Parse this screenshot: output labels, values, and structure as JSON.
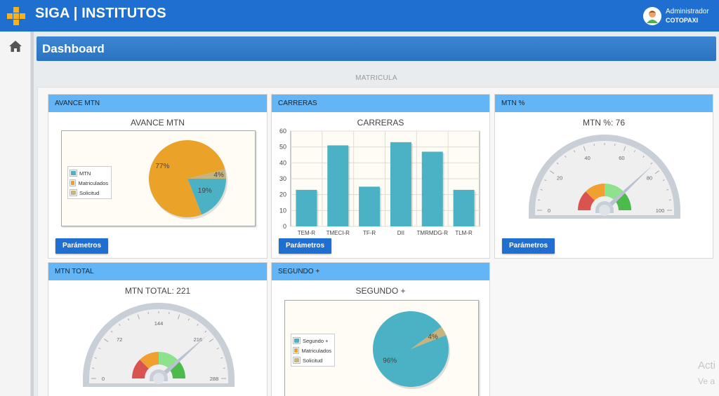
{
  "header": {
    "title": "SIGA | INSTITUTOS",
    "user_role": "Administrador",
    "user_institution": "COTOPAXI"
  },
  "page": {
    "title": "Dashboard",
    "section_label": "MATRICULA"
  },
  "colors": {
    "topbar": "#1f6fd0",
    "panel_head": "#64b5f6",
    "button": "#1f6fd0",
    "mtn": "#4bb2c5",
    "matriculados": "#eaa228",
    "solicitud": "#c5b47f"
  },
  "panels": {
    "avance_mtn": {
      "header": "AVANCE MTN",
      "title": "AVANCE MTN",
      "button": "Parámetros",
      "legend": [
        "MTN",
        "Matriculados",
        "Solicitud"
      ],
      "slice_labels": [
        "77%",
        "19%",
        "4%"
      ]
    },
    "carreras": {
      "header": "CARRERAS",
      "title": "CARRERAS",
      "button": "Parámetros"
    },
    "mtn_pct": {
      "header": "MTN %",
      "title": "MTN %: 76",
      "button": "Parámetros"
    },
    "mtn_total": {
      "header": "MTN TOTAL",
      "title": "MTN TOTAL: 221"
    },
    "segundo": {
      "header": "SEGUNDO +",
      "title": "SEGUNDO +",
      "legend": [
        "Segundo +",
        "Matriculados",
        "Solicitud"
      ],
      "slice_labels": [
        "96%",
        "4%"
      ]
    }
  },
  "chart_data": [
    {
      "type": "pie",
      "title": "AVANCE MTN",
      "labels": [
        "MTN",
        "Matriculados",
        "Solicitud"
      ],
      "values": [
        19,
        77,
        4
      ],
      "legend": "left"
    },
    {
      "type": "bar",
      "title": "CARRERAS",
      "categories": [
        "TEM-R",
        "TMECI-R",
        "TF-R",
        "DII",
        "TMRMDG-R",
        "TLM-R"
      ],
      "values": [
        23,
        51,
        25,
        53,
        47,
        23
      ],
      "ylim": [
        0,
        60
      ],
      "yticks": [
        0,
        10,
        20,
        30,
        40,
        50,
        60
      ],
      "grid": true
    },
    {
      "type": "gauge",
      "title": "MTN %: 76",
      "value": 76,
      "min": 0,
      "max": 100,
      "ticks": [
        0,
        20,
        40,
        60,
        80,
        100
      ]
    },
    {
      "type": "gauge",
      "title": "MTN TOTAL: 221",
      "value": 221,
      "min": 0,
      "max": 288,
      "ticks": [
        0,
        72,
        144,
        216,
        288
      ]
    },
    {
      "type": "pie",
      "title": "SEGUNDO +",
      "labels": [
        "Segundo +",
        "Matriculados",
        "Solicitud"
      ],
      "values": [
        96,
        0,
        4
      ],
      "legend": "left"
    }
  ],
  "watermark": {
    "line1": "Acti",
    "line2": "Ve a"
  }
}
